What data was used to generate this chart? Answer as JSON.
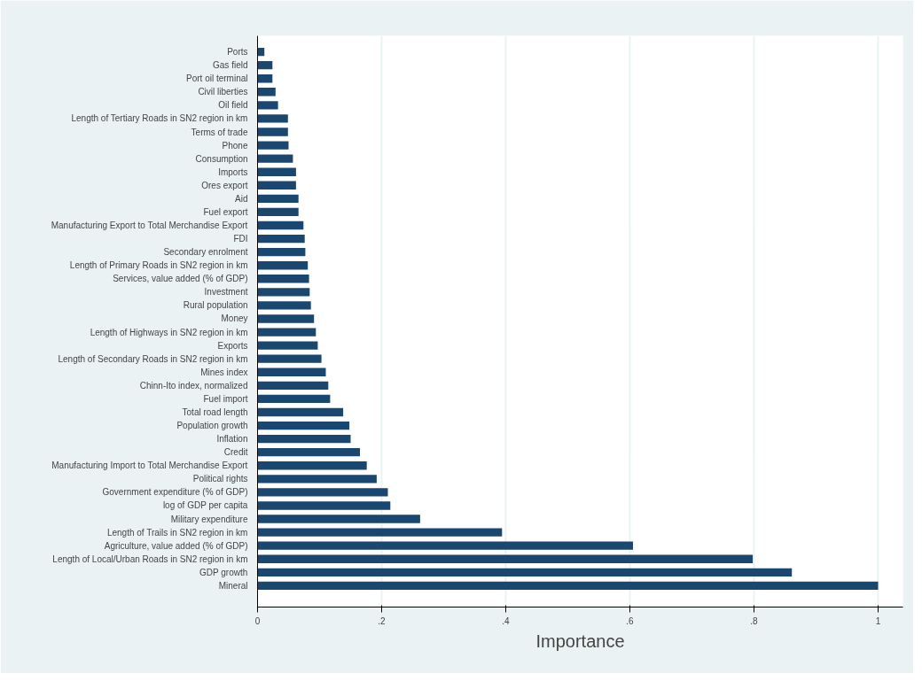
{
  "chart_data": {
    "type": "bar",
    "orientation": "horizontal",
    "xlabel": "Importance",
    "categories": [
      "Ports",
      "Gas field",
      "Port oil terminal",
      "Civil liberties",
      "Oil field",
      "Length of Tertiary Roads in SN2 region in km",
      "Terms of trade",
      "Phone",
      "Consumption",
      "Imports",
      "Ores export",
      "Aid",
      "Fuel export",
      "Manufacturing Export to Total Merchandise Export",
      "FDI",
      "Secondary enrolment",
      "Length of Primary Roads in SN2 region in km",
      "Services, value added (% of GDP)",
      "Investment",
      "Rural population",
      "Money",
      "Length of Highways in SN2 region in km",
      "Exports",
      "Length of Secondary Roads in SN2 region in km",
      "Mines index",
      "Chinn-Ito index, normalized",
      "Fuel import",
      "Total road length",
      "Population growth",
      "Inflation",
      "Credit",
      "Manufacturing Import to Total Merchandise Export",
      "Political rights",
      "Government expenditure (% of GDP)",
      "log of GDP per capita",
      "Military expenditure",
      "Length of Trails in SN2 region in km",
      "Agriculture, value added (% of GDP)",
      "Length of Local/Urban Roads in SN2 region in km",
      "GDP growth",
      "Mineral"
    ],
    "values": [
      0.011,
      0.024,
      0.024,
      0.029,
      0.033,
      0.049,
      0.049,
      0.05,
      0.057,
      0.062,
      0.062,
      0.066,
      0.066,
      0.074,
      0.076,
      0.077,
      0.081,
      0.083,
      0.084,
      0.086,
      0.091,
      0.094,
      0.097,
      0.103,
      0.11,
      0.114,
      0.117,
      0.138,
      0.148,
      0.15,
      0.165,
      0.176,
      0.192,
      0.21,
      0.214,
      0.262,
      0.394,
      0.605,
      0.798,
      0.861,
      1.0
    ],
    "color": "#1a476f",
    "xlim": [
      0,
      1.04
    ],
    "xticks": [
      0,
      {
        "value": 0.2,
        "label": ".2"
      },
      {
        "value": 0.4,
        "label": ".4"
      },
      {
        "value": 0.6,
        "label": ".6"
      },
      {
        "value": 0.8,
        "label": ".8"
      },
      1
    ],
    "grid": "x"
  }
}
